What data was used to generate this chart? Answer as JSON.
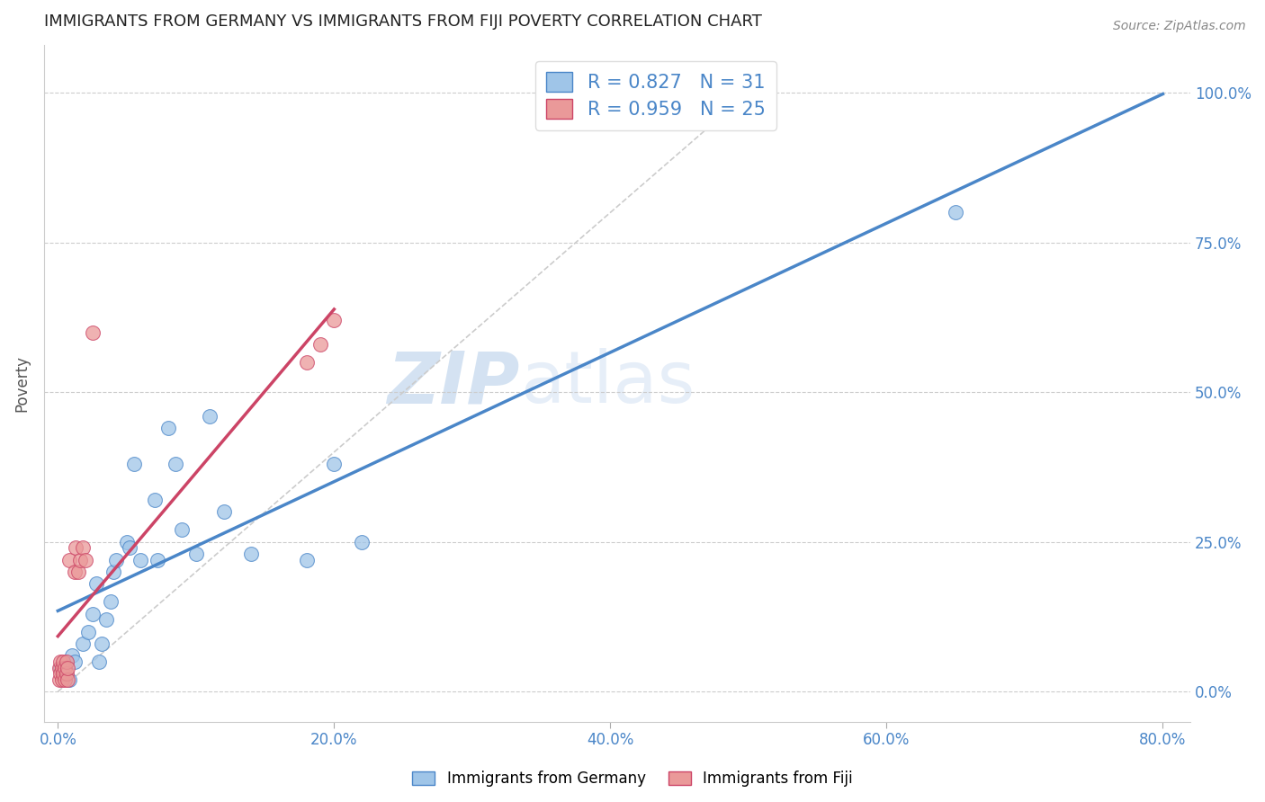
{
  "title": "IMMIGRANTS FROM GERMANY VS IMMIGRANTS FROM FIJI POVERTY CORRELATION CHART",
  "source": "Source: ZipAtlas.com",
  "xlabel_ticks": [
    "0.0%",
    "20.0%",
    "40.0%",
    "60.0%",
    "80.0%"
  ],
  "ylabel_ticks": [
    "0.0%",
    "25.0%",
    "50.0%",
    "75.0%",
    "100.0%"
  ],
  "x_tick_vals": [
    0.0,
    0.2,
    0.4,
    0.6,
    0.8
  ],
  "y_tick_vals": [
    0.0,
    0.25,
    0.5,
    0.75,
    1.0
  ],
  "xlim": [
    -0.01,
    0.82
  ],
  "ylim": [
    -0.05,
    1.08
  ],
  "ylabel": "Poverty",
  "legend_germany": "Immigrants from Germany",
  "legend_fiji": "Immigrants from Fiji",
  "R_germany": 0.827,
  "N_germany": 31,
  "R_fiji": 0.959,
  "N_fiji": 25,
  "germany_color": "#9fc5e8",
  "fiji_color": "#ea9999",
  "germany_line_color": "#4a86c8",
  "fiji_line_color": "#cc4466",
  "diagonal_color": "#cccccc",
  "germany_x": [
    0.002,
    0.008,
    0.01,
    0.012,
    0.018,
    0.022,
    0.025,
    0.028,
    0.03,
    0.032,
    0.035,
    0.038,
    0.04,
    0.042,
    0.05,
    0.052,
    0.055,
    0.06,
    0.07,
    0.072,
    0.08,
    0.085,
    0.09,
    0.1,
    0.11,
    0.12,
    0.14,
    0.18,
    0.2,
    0.22,
    0.65
  ],
  "germany_y": [
    0.04,
    0.02,
    0.06,
    0.05,
    0.08,
    0.1,
    0.13,
    0.18,
    0.05,
    0.08,
    0.12,
    0.15,
    0.2,
    0.22,
    0.25,
    0.24,
    0.38,
    0.22,
    0.32,
    0.22,
    0.44,
    0.38,
    0.27,
    0.23,
    0.46,
    0.3,
    0.23,
    0.22,
    0.38,
    0.25,
    0.8
  ],
  "fiji_x": [
    0.001,
    0.001,
    0.002,
    0.002,
    0.003,
    0.003,
    0.004,
    0.004,
    0.005,
    0.005,
    0.006,
    0.006,
    0.007,
    0.007,
    0.008,
    0.012,
    0.013,
    0.015,
    0.016,
    0.018,
    0.02,
    0.025,
    0.18,
    0.19,
    0.2
  ],
  "fiji_y": [
    0.02,
    0.04,
    0.03,
    0.05,
    0.02,
    0.04,
    0.03,
    0.05,
    0.02,
    0.04,
    0.03,
    0.05,
    0.02,
    0.04,
    0.22,
    0.2,
    0.24,
    0.2,
    0.22,
    0.24,
    0.22,
    0.6,
    0.55,
    0.58,
    0.62
  ],
  "watermark_zip": "ZIP",
  "watermark_atlas": "atlas",
  "background_color": "#ffffff",
  "title_fontsize": 13,
  "tick_color": "#4a86c8",
  "legend_text_color": "#4a86c8"
}
